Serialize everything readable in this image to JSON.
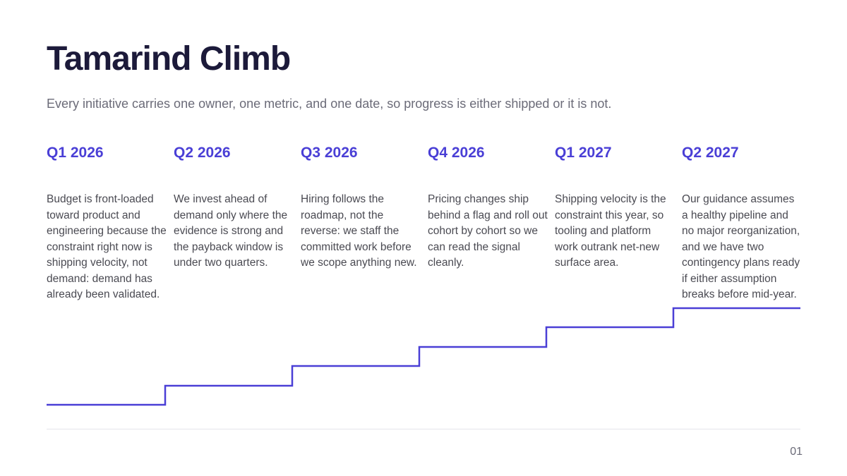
{
  "title": "Tamarind Climb",
  "subtitle": "Every initiative carries one owner, one metric, and one date, so progress is either shipped or it is not.",
  "phases": [
    {
      "label": "Q1 2026",
      "text": "Budget is front-loaded toward product and engineering because the constraint right now is shipping velocity, not demand: demand has already been validated."
    },
    {
      "label": "Q2 2026",
      "text": "We invest ahead of demand only where the evidence is strong and the payback window is under two quarters."
    },
    {
      "label": "Q3 2026",
      "text": "Hiring follows the roadmap, not the reverse: we staff the committed work before we scope anything new."
    },
    {
      "label": "Q4 2026",
      "text": "Pricing changes ship behind a flag and roll out cohort by cohort so we can read the signal cleanly."
    },
    {
      "label": "Q1 2027",
      "text": "Shipping velocity is the constraint this year, so tooling and platform work outrank net-new surface area."
    },
    {
      "label": "Q2 2027",
      "text": "Our guidance assumes a healthy pipeline and no major reorganization, and we have two contingency plans ready if either assumption breaks before mid-year."
    }
  ],
  "accent_color": "#4a3fd6",
  "page_number": "01"
}
